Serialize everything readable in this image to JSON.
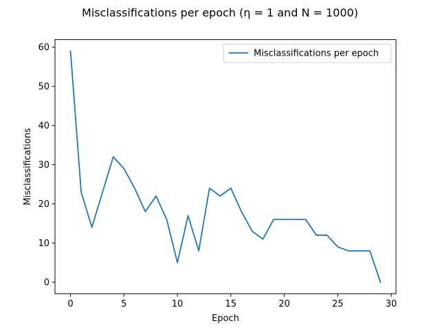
{
  "chart_data": {
    "type": "line",
    "title": "Misclassifications per epoch (η = 1 and N = 1000)",
    "xlabel": "Epoch",
    "ylabel": "Misclassifications",
    "xlim": [
      -1.45,
      30.45
    ],
    "ylim": [
      -2.95,
      61.95
    ],
    "xticks": [
      0,
      5,
      10,
      15,
      20,
      25,
      30
    ],
    "yticks": [
      0,
      10,
      20,
      30,
      40,
      50,
      60
    ],
    "grid": false,
    "legend_position": "upper right",
    "series": [
      {
        "name": "Misclassifications per epoch",
        "color": "#1f77b4",
        "x": [
          0,
          1,
          2,
          3,
          4,
          5,
          6,
          7,
          8,
          9,
          10,
          11,
          12,
          13,
          14,
          15,
          16,
          17,
          18,
          19,
          20,
          21,
          22,
          23,
          24,
          25,
          26,
          27,
          28,
          29
        ],
        "y": [
          59,
          23,
          14,
          23,
          32,
          29,
          24,
          18,
          22,
          16,
          5,
          17,
          8,
          24,
          22,
          24,
          18,
          13,
          11,
          16,
          16,
          16,
          16,
          12,
          12,
          9,
          8,
          8,
          8,
          0
        ]
      }
    ]
  }
}
